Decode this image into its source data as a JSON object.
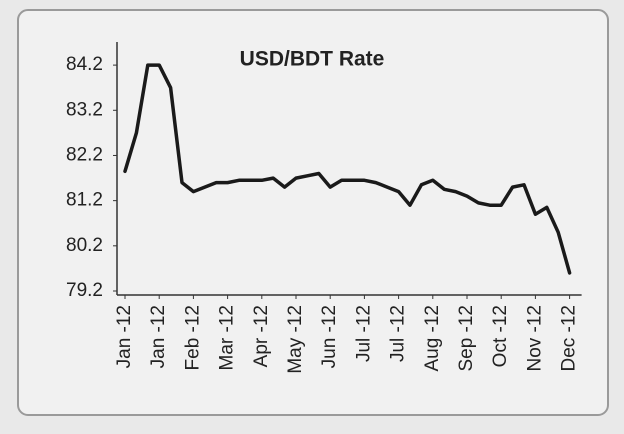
{
  "chart_data": {
    "type": "line",
    "title": "USD/BDT Rate",
    "categories": [
      "Jan -12",
      null,
      null,
      "Jan -12",
      null,
      null,
      "Feb -12",
      null,
      null,
      "Mar -12",
      null,
      null,
      "Apr -12",
      null,
      null,
      "May -12",
      null,
      null,
      "Jun -12",
      null,
      null,
      "Jul -12",
      null,
      null,
      "Jul -12",
      null,
      null,
      "Aug -12",
      null,
      null,
      "Sep -12",
      null,
      null,
      "Oct -12",
      null,
      null,
      "Nov -12",
      null,
      null,
      "Dec -12"
    ],
    "values": [
      81.85,
      82.7,
      84.2,
      84.2,
      83.7,
      81.6,
      81.4,
      81.5,
      81.6,
      81.6,
      81.65,
      81.65,
      81.65,
      81.7,
      81.5,
      81.7,
      81.75,
      81.8,
      81.5,
      81.65,
      81.65,
      81.65,
      81.6,
      81.5,
      81.4,
      81.1,
      81.55,
      81.65,
      81.45,
      81.4,
      81.3,
      81.15,
      81.1,
      81.1,
      81.5,
      81.55,
      80.9,
      81.05,
      80.5,
      79.6
    ],
    "color": "#1a1a1a",
    "ylim": [
      79.2,
      84.8
    ],
    "yticks": [
      79.2,
      80.2,
      81.2,
      82.2,
      83.2,
      84.2
    ]
  }
}
